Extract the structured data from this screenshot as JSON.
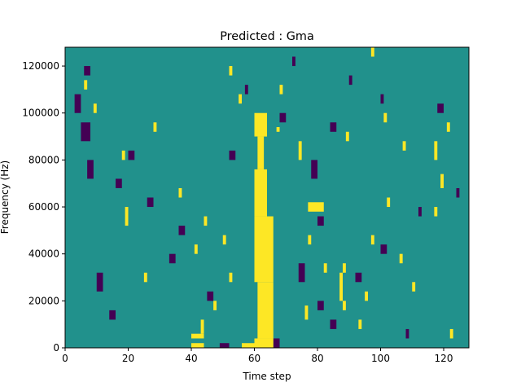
{
  "chart_data": {
    "type": "heatmap",
    "title": "Predicted : Gma",
    "xlabel": "Time step",
    "ylabel": "Frequency (Hz)",
    "xlim": [
      0,
      128
    ],
    "ylim": [
      0,
      128000
    ],
    "x_ticks": [
      0,
      20,
      40,
      60,
      80,
      100,
      120
    ],
    "y_ticks": [
      0,
      20000,
      40000,
      60000,
      80000,
      100000,
      120000
    ],
    "x_tick_labels": [
      "0",
      "20",
      "40",
      "60",
      "80",
      "100",
      "120"
    ],
    "y_tick_labels": [
      "0",
      "20000",
      "40000",
      "60000",
      "80000",
      "100000",
      "120000"
    ],
    "grid": false,
    "legend": "none",
    "n_time": 128,
    "n_freq": 64,
    "freq_bin_hz": 2000,
    "class_colors": {
      "background": "#21918c",
      "class_a": "#fde725",
      "class_b": "#440154"
    },
    "note_values": "cells not listed are background; each run covers time steps [start, end) within the given frequency band",
    "yellow_runs": [
      {
        "f": [
          0,
          1
        ],
        "t": [
          40,
          44
        ]
      },
      {
        "f": [
          0,
          1
        ],
        "t": [
          56,
          62
        ]
      },
      {
        "f": [
          0,
          2
        ],
        "t": [
          60,
          66
        ]
      },
      {
        "f": [
          2,
          3
        ],
        "t": [
          40,
          44
        ]
      },
      {
        "f": [
          2,
          14
        ],
        "t": [
          61,
          66
        ]
      },
      {
        "f": [
          14,
          28
        ],
        "t": [
          60,
          66
        ]
      },
      {
        "f": [
          28,
          38
        ],
        "t": [
          60,
          64
        ]
      },
      {
        "f": [
          38,
          45
        ],
        "t": [
          61,
          63
        ]
      },
      {
        "f": [
          45,
          50
        ],
        "t": [
          60,
          64
        ]
      },
      {
        "f": [
          45,
          48
        ],
        "t": [
          61,
          64
        ]
      },
      {
        "f": [
          46,
          47
        ],
        "t": [
          67,
          68
        ]
      },
      {
        "f": [
          3,
          6
        ],
        "t": [
          43,
          44
        ]
      },
      {
        "f": [
          14,
          16
        ],
        "t": [
          25,
          26
        ]
      },
      {
        "f": [
          46,
          48
        ],
        "t": [
          28,
          29
        ]
      },
      {
        "f": [
          16,
          18
        ],
        "t": [
          82,
          83
        ]
      },
      {
        "f": [
          8,
          10
        ],
        "t": [
          88,
          89
        ]
      },
      {
        "f": [
          16,
          18
        ],
        "t": [
          88,
          89
        ]
      },
      {
        "f": [
          22,
          24
        ],
        "t": [
          77,
          78
        ]
      },
      {
        "f": [
          29,
          31
        ],
        "t": [
          77,
          82
        ]
      },
      {
        "f": [
          10,
          16
        ],
        "t": [
          87,
          88
        ]
      },
      {
        "f": [
          6,
          9
        ],
        "t": [
          76,
          77
        ]
      },
      {
        "f": [
          40,
          44
        ],
        "t": [
          74,
          75
        ]
      },
      {
        "f": [
          58,
          60
        ],
        "t": [
          52,
          53
        ]
      },
      {
        "f": [
          62,
          64
        ],
        "t": [
          97,
          98
        ]
      },
      {
        "f": [
          26,
          30
        ],
        "t": [
          19,
          20
        ]
      },
      {
        "f": [
          40,
          42
        ],
        "t": [
          18,
          19
        ]
      },
      {
        "f": [
          52,
          54
        ],
        "t": [
          55,
          56
        ]
      },
      {
        "f": [
          55,
          57
        ],
        "t": [
          6,
          7
        ]
      },
      {
        "f": [
          50,
          52
        ],
        "t": [
          9,
          10
        ]
      },
      {
        "f": [
          46,
          48
        ],
        "t": [
          121,
          122
        ]
      },
      {
        "f": [
          54,
          56
        ],
        "t": [
          68,
          69
        ]
      },
      {
        "f": [
          48,
          50
        ],
        "t": [
          101,
          102
        ]
      },
      {
        "f": [
          2,
          4
        ],
        "t": [
          122,
          123
        ]
      },
      {
        "f": [
          12,
          14
        ],
        "t": [
          110,
          111
        ]
      },
      {
        "f": [
          18,
          20
        ],
        "t": [
          106,
          107
        ]
      },
      {
        "f": [
          28,
          30
        ],
        "t": [
          117,
          118
        ]
      },
      {
        "f": [
          42,
          44
        ],
        "t": [
          107,
          108
        ]
      },
      {
        "f": [
          34,
          37
        ],
        "t": [
          119,
          120
        ]
      },
      {
        "f": [
          40,
          44
        ],
        "t": [
          117,
          118
        ]
      },
      {
        "f": [
          4,
          6
        ],
        "t": [
          93,
          94
        ]
      },
      {
        "f": [
          10,
          12
        ],
        "t": [
          95,
          96
        ]
      },
      {
        "f": [
          22,
          24
        ],
        "t": [
          97,
          98
        ]
      },
      {
        "f": [
          30,
          32
        ],
        "t": [
          102,
          103
        ]
      },
      {
        "f": [
          44,
          46
        ],
        "t": [
          89,
          90
        ]
      },
      {
        "f": [
          32,
          34
        ],
        "t": [
          36,
          37
        ]
      },
      {
        "f": [
          26,
          28
        ],
        "t": [
          44,
          45
        ]
      },
      {
        "f": [
          20,
          22
        ],
        "t": [
          41,
          42
        ]
      },
      {
        "f": [
          8,
          10
        ],
        "t": [
          47,
          48
        ]
      },
      {
        "f": [
          14,
          16
        ],
        "t": [
          52,
          53
        ]
      },
      {
        "f": [
          22,
          24
        ],
        "t": [
          50,
          51
        ]
      }
    ],
    "purple_runs": [
      {
        "f": [
          0,
          1
        ],
        "t": [
          49,
          52
        ]
      },
      {
        "f": [
          0,
          2
        ],
        "t": [
          66,
          68
        ]
      },
      {
        "f": [
          4,
          6
        ],
        "t": [
          84,
          86
        ]
      },
      {
        "f": [
          2,
          4
        ],
        "t": [
          108,
          109
        ]
      },
      {
        "f": [
          8,
          10
        ],
        "t": [
          80,
          82
        ]
      },
      {
        "f": [
          14,
          18
        ],
        "t": [
          74,
          76
        ]
      },
      {
        "f": [
          26,
          28
        ],
        "t": [
          80,
          82
        ]
      },
      {
        "f": [
          36,
          40
        ],
        "t": [
          7,
          9
        ]
      },
      {
        "f": [
          44,
          48
        ],
        "t": [
          5,
          8
        ]
      },
      {
        "f": [
          58,
          60
        ],
        "t": [
          6,
          8
        ]
      },
      {
        "f": [
          40,
          42
        ],
        "t": [
          20,
          22
        ]
      },
      {
        "f": [
          12,
          16
        ],
        "t": [
          10,
          12
        ]
      },
      {
        "f": [
          24,
          26
        ],
        "t": [
          36,
          38
        ]
      },
      {
        "f": [
          36,
          40
        ],
        "t": [
          78,
          80
        ]
      },
      {
        "f": [
          46,
          48
        ],
        "t": [
          84,
          86
        ]
      },
      {
        "f": [
          50,
          54
        ],
        "t": [
          3,
          5
        ]
      },
      {
        "f": [
          56,
          58
        ],
        "t": [
          90,
          91
        ]
      },
      {
        "f": [
          60,
          62
        ],
        "t": [
          72,
          73
        ]
      },
      {
        "f": [
          40,
          42
        ],
        "t": [
          52,
          54
        ]
      },
      {
        "f": [
          14,
          16
        ],
        "t": [
          92,
          94
        ]
      },
      {
        "f": [
          20,
          22
        ],
        "t": [
          100,
          102
        ]
      },
      {
        "f": [
          28,
          30
        ],
        "t": [
          112,
          113
        ]
      },
      {
        "f": [
          50,
          52
        ],
        "t": [
          118,
          120
        ]
      },
      {
        "f": [
          54,
          56
        ],
        "t": [
          57,
          58
        ]
      },
      {
        "f": [
          6,
          8
        ],
        "t": [
          14,
          16
        ]
      },
      {
        "f": [
          30,
          32
        ],
        "t": [
          26,
          28
        ]
      },
      {
        "f": [
          18,
          20
        ],
        "t": [
          33,
          35
        ]
      },
      {
        "f": [
          10,
          12
        ],
        "t": [
          45,
          47
        ]
      },
      {
        "f": [
          34,
          36
        ],
        "t": [
          16,
          18
        ]
      },
      {
        "f": [
          48,
          50
        ],
        "t": [
          68,
          70
        ]
      },
      {
        "f": [
          52,
          54
        ],
        "t": [
          100,
          101
        ]
      },
      {
        "f": [
          32,
          34
        ],
        "t": [
          124,
          125
        ]
      }
    ]
  }
}
